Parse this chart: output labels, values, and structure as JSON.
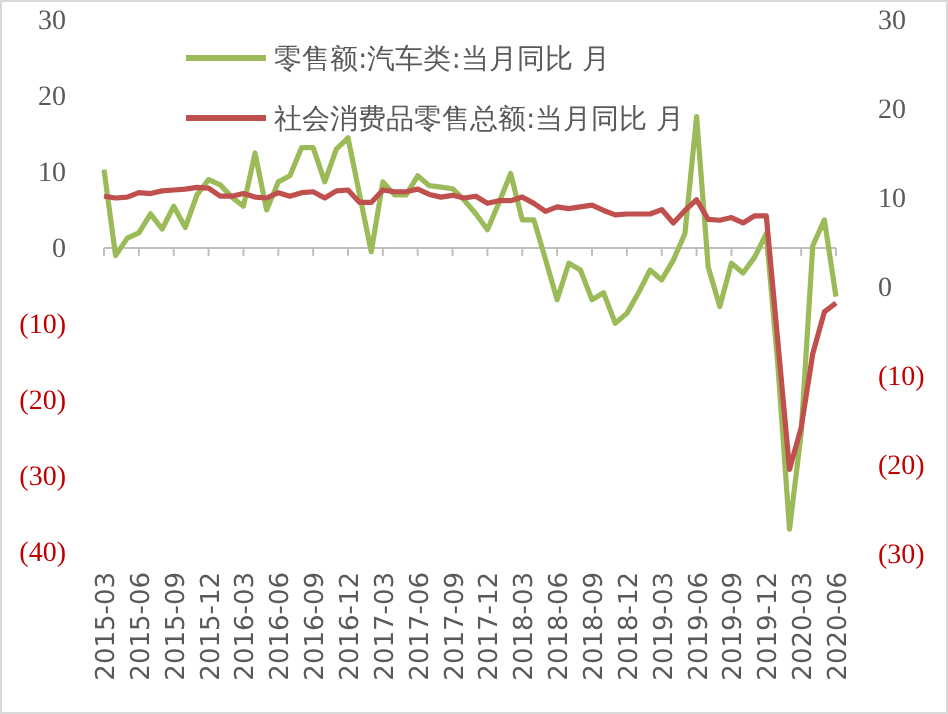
{
  "chart_data": {
    "type": "line",
    "categories": [
      "2015-03",
      null,
      null,
      "2015-06",
      null,
      null,
      "2015-09",
      null,
      null,
      "2015-12",
      null,
      null,
      "2016-03",
      null,
      null,
      "2016-06",
      null,
      null,
      "2016-09",
      null,
      null,
      "2016-12",
      null,
      null,
      "2017-03",
      null,
      null,
      "2017-06",
      null,
      null,
      "2017-09",
      null,
      null,
      "2017-12",
      null,
      null,
      "2018-03",
      null,
      null,
      "2018-06",
      null,
      null,
      "2018-09",
      null,
      null,
      "2018-12",
      null,
      null,
      "2019-03",
      null,
      null,
      "2019-06",
      null,
      null,
      "2019-09",
      null,
      null,
      "2019-12",
      null,
      null,
      "2020-03",
      null,
      null,
      "2020-06"
    ],
    "series": [
      {
        "name": "零售额:汽车类:当月同比 月",
        "color": "#9bbb59",
        "values": [
          10.3,
          -1,
          1.3,
          2,
          4.5,
          2.5,
          5.5,
          2.7,
          7,
          9,
          8.3,
          6.7,
          5.5,
          12.5,
          5,
          8.7,
          9.5,
          13.2,
          13.2,
          8.7,
          13,
          14.5,
          7,
          -0.5,
          8.7,
          7,
          7,
          9.5,
          8.2,
          8,
          7.8,
          6.3,
          4.5,
          2.4,
          6,
          9.8,
          3.7,
          3.7,
          -1.5,
          -6.8,
          -2,
          -2.9,
          -6.8,
          -5.9,
          -9.9,
          -8.6,
          -5.9,
          -2.9,
          -4.2,
          -1.6,
          1.9,
          17.3,
          -2.5,
          -7.7,
          -2,
          -3.3,
          -1.2,
          1.9,
          -15.5,
          -37,
          -24.4,
          0.3,
          3.7,
          -6.4
        ]
      },
      {
        "name": "社会消费品零售总额:当月同比 月",
        "color": "#c0504d",
        "axis": "y2",
        "values": [
          10.2,
          10.0,
          10.1,
          10.6,
          10.5,
          10.8,
          10.9,
          11.0,
          11.2,
          11.1,
          10.2,
          10.2,
          10.5,
          10.1,
          10.0,
          10.6,
          10.2,
          10.6,
          10.7,
          10.0,
          10.8,
          10.9,
          9.5,
          9.5,
          10.9,
          10.7,
          10.7,
          11.0,
          10.4,
          10.1,
          10.3,
          10.0,
          10.2,
          9.4,
          9.7,
          9.7,
          10.1,
          9.4,
          8.5,
          9.0,
          8.8,
          9.0,
          9.2,
          8.6,
          8.1,
          8.2,
          8.2,
          8.2,
          8.7,
          7.2,
          8.6,
          9.8,
          7.6,
          7.5,
          7.8,
          7.2,
          8.0,
          8.0,
          -6.2,
          -20.5,
          -15.8,
          -7.5,
          -2.8,
          -1.8
        ]
      }
    ],
    "ylim": [
      -40,
      30
    ],
    "yticks": [
      30,
      20,
      10,
      0,
      {
        "value": -10,
        "label": "(10)"
      },
      {
        "value": -20,
        "label": "(20)"
      },
      {
        "value": -30,
        "label": "(30)"
      },
      {
        "value": -40,
        "label": "(40)"
      }
    ],
    "y2lim": [
      -30,
      30
    ],
    "y2ticks": [
      30,
      20,
      10,
      0,
      {
        "value": -10,
        "label": "(10)"
      },
      {
        "value": -20,
        "label": "(20)"
      },
      {
        "value": -30,
        "label": "(30)"
      }
    ],
    "legend": "top",
    "marker": "none",
    "line_style": "solid"
  }
}
